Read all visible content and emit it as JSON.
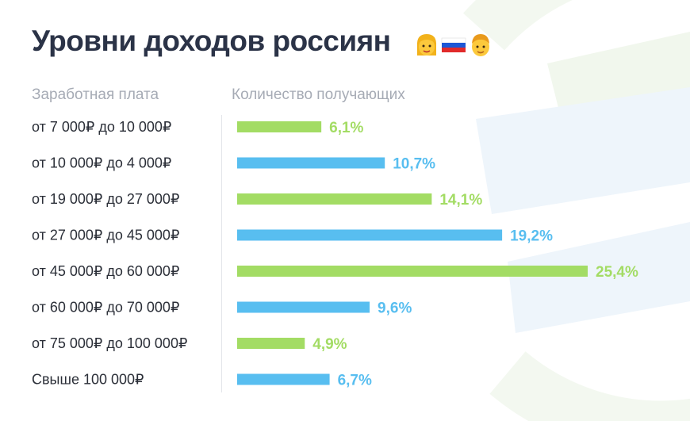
{
  "title": "Уровни доходов россиян",
  "title_icons": [
    "woman-face-emoji",
    "russia-flag-emoji",
    "man-face-emoji"
  ],
  "colors": {
    "green": "#a3dc64",
    "blue": "#58bef0",
    "title": "#2b3347",
    "header": "#a6abb5"
  },
  "chart_data": {
    "type": "bar",
    "orientation": "horizontal",
    "xlabel": "Количество получающих",
    "ylabel": "Заработная плата",
    "xlim": [
      0,
      25.4
    ],
    "unit": "%",
    "categories": [
      "от 7 000₽ до 10 000₽",
      "от 10 000₽ до 4 000₽",
      "от 19 000₽ до 27 000₽",
      "от 27 000₽ до 45 000₽",
      "от 45 000₽ до 60 000₽",
      "от 60 000₽ до 70 000₽",
      "от 75 000₽ до 100 000₽",
      "Свыше 100 000₽"
    ],
    "values": [
      6.1,
      10.7,
      14.1,
      19.2,
      25.4,
      9.6,
      4.9,
      6.7
    ],
    "value_labels": [
      "6,1%",
      "10,7%",
      "14,1%",
      "19,2%",
      "25,4%",
      "9,6%",
      "4,9%",
      "6,7%"
    ],
    "bar_colors": [
      "#a3dc64",
      "#58bef0",
      "#a3dc64",
      "#58bef0",
      "#a3dc64",
      "#58bef0",
      "#a3dc64",
      "#58bef0"
    ],
    "grid": false,
    "legend": "none"
  }
}
